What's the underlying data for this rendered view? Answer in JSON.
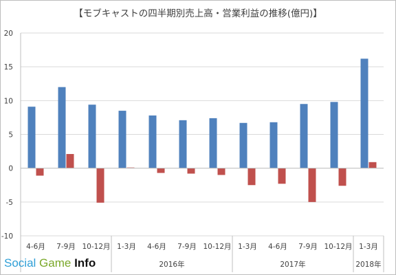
{
  "chart_data": {
    "type": "bar",
    "title": "【モブキャストの四半期別売上高・営業利益の推移(億円)】",
    "xlabel": "",
    "ylabel": "",
    "ylim": [
      -10,
      20
    ],
    "yticks": [
      20,
      15,
      10,
      5,
      0,
      -5,
      -10
    ],
    "grid": true,
    "legend": "none",
    "categories": [
      "4-6月",
      "7-9月",
      "10-12月",
      "1-3月",
      "4-6月",
      "7-9月",
      "10-12月",
      "1-3月",
      "4-6月",
      "7-9月",
      "10-12月",
      "1-3月"
    ],
    "year_groups": [
      {
        "label": "",
        "count": 3
      },
      {
        "label": "2016年",
        "count": 4
      },
      {
        "label": "2017年",
        "count": 4
      },
      {
        "label": "2018年",
        "count": 1
      }
    ],
    "series": [
      {
        "color": "#4f81bd",
        "values": [
          9.1,
          12.0,
          9.4,
          8.5,
          7.8,
          7.1,
          7.4,
          6.7,
          6.8,
          9.5,
          9.8,
          16.2
        ]
      },
      {
        "color": "#c0504d",
        "values": [
          -1.1,
          2.1,
          -5.1,
          0.1,
          -0.7,
          -0.8,
          -1.0,
          -2.5,
          -2.3,
          -5.0,
          -2.6,
          0.9
        ]
      }
    ]
  },
  "watermark": {
    "part1": "Social",
    "part2": "Game",
    "part3": "Info"
  }
}
